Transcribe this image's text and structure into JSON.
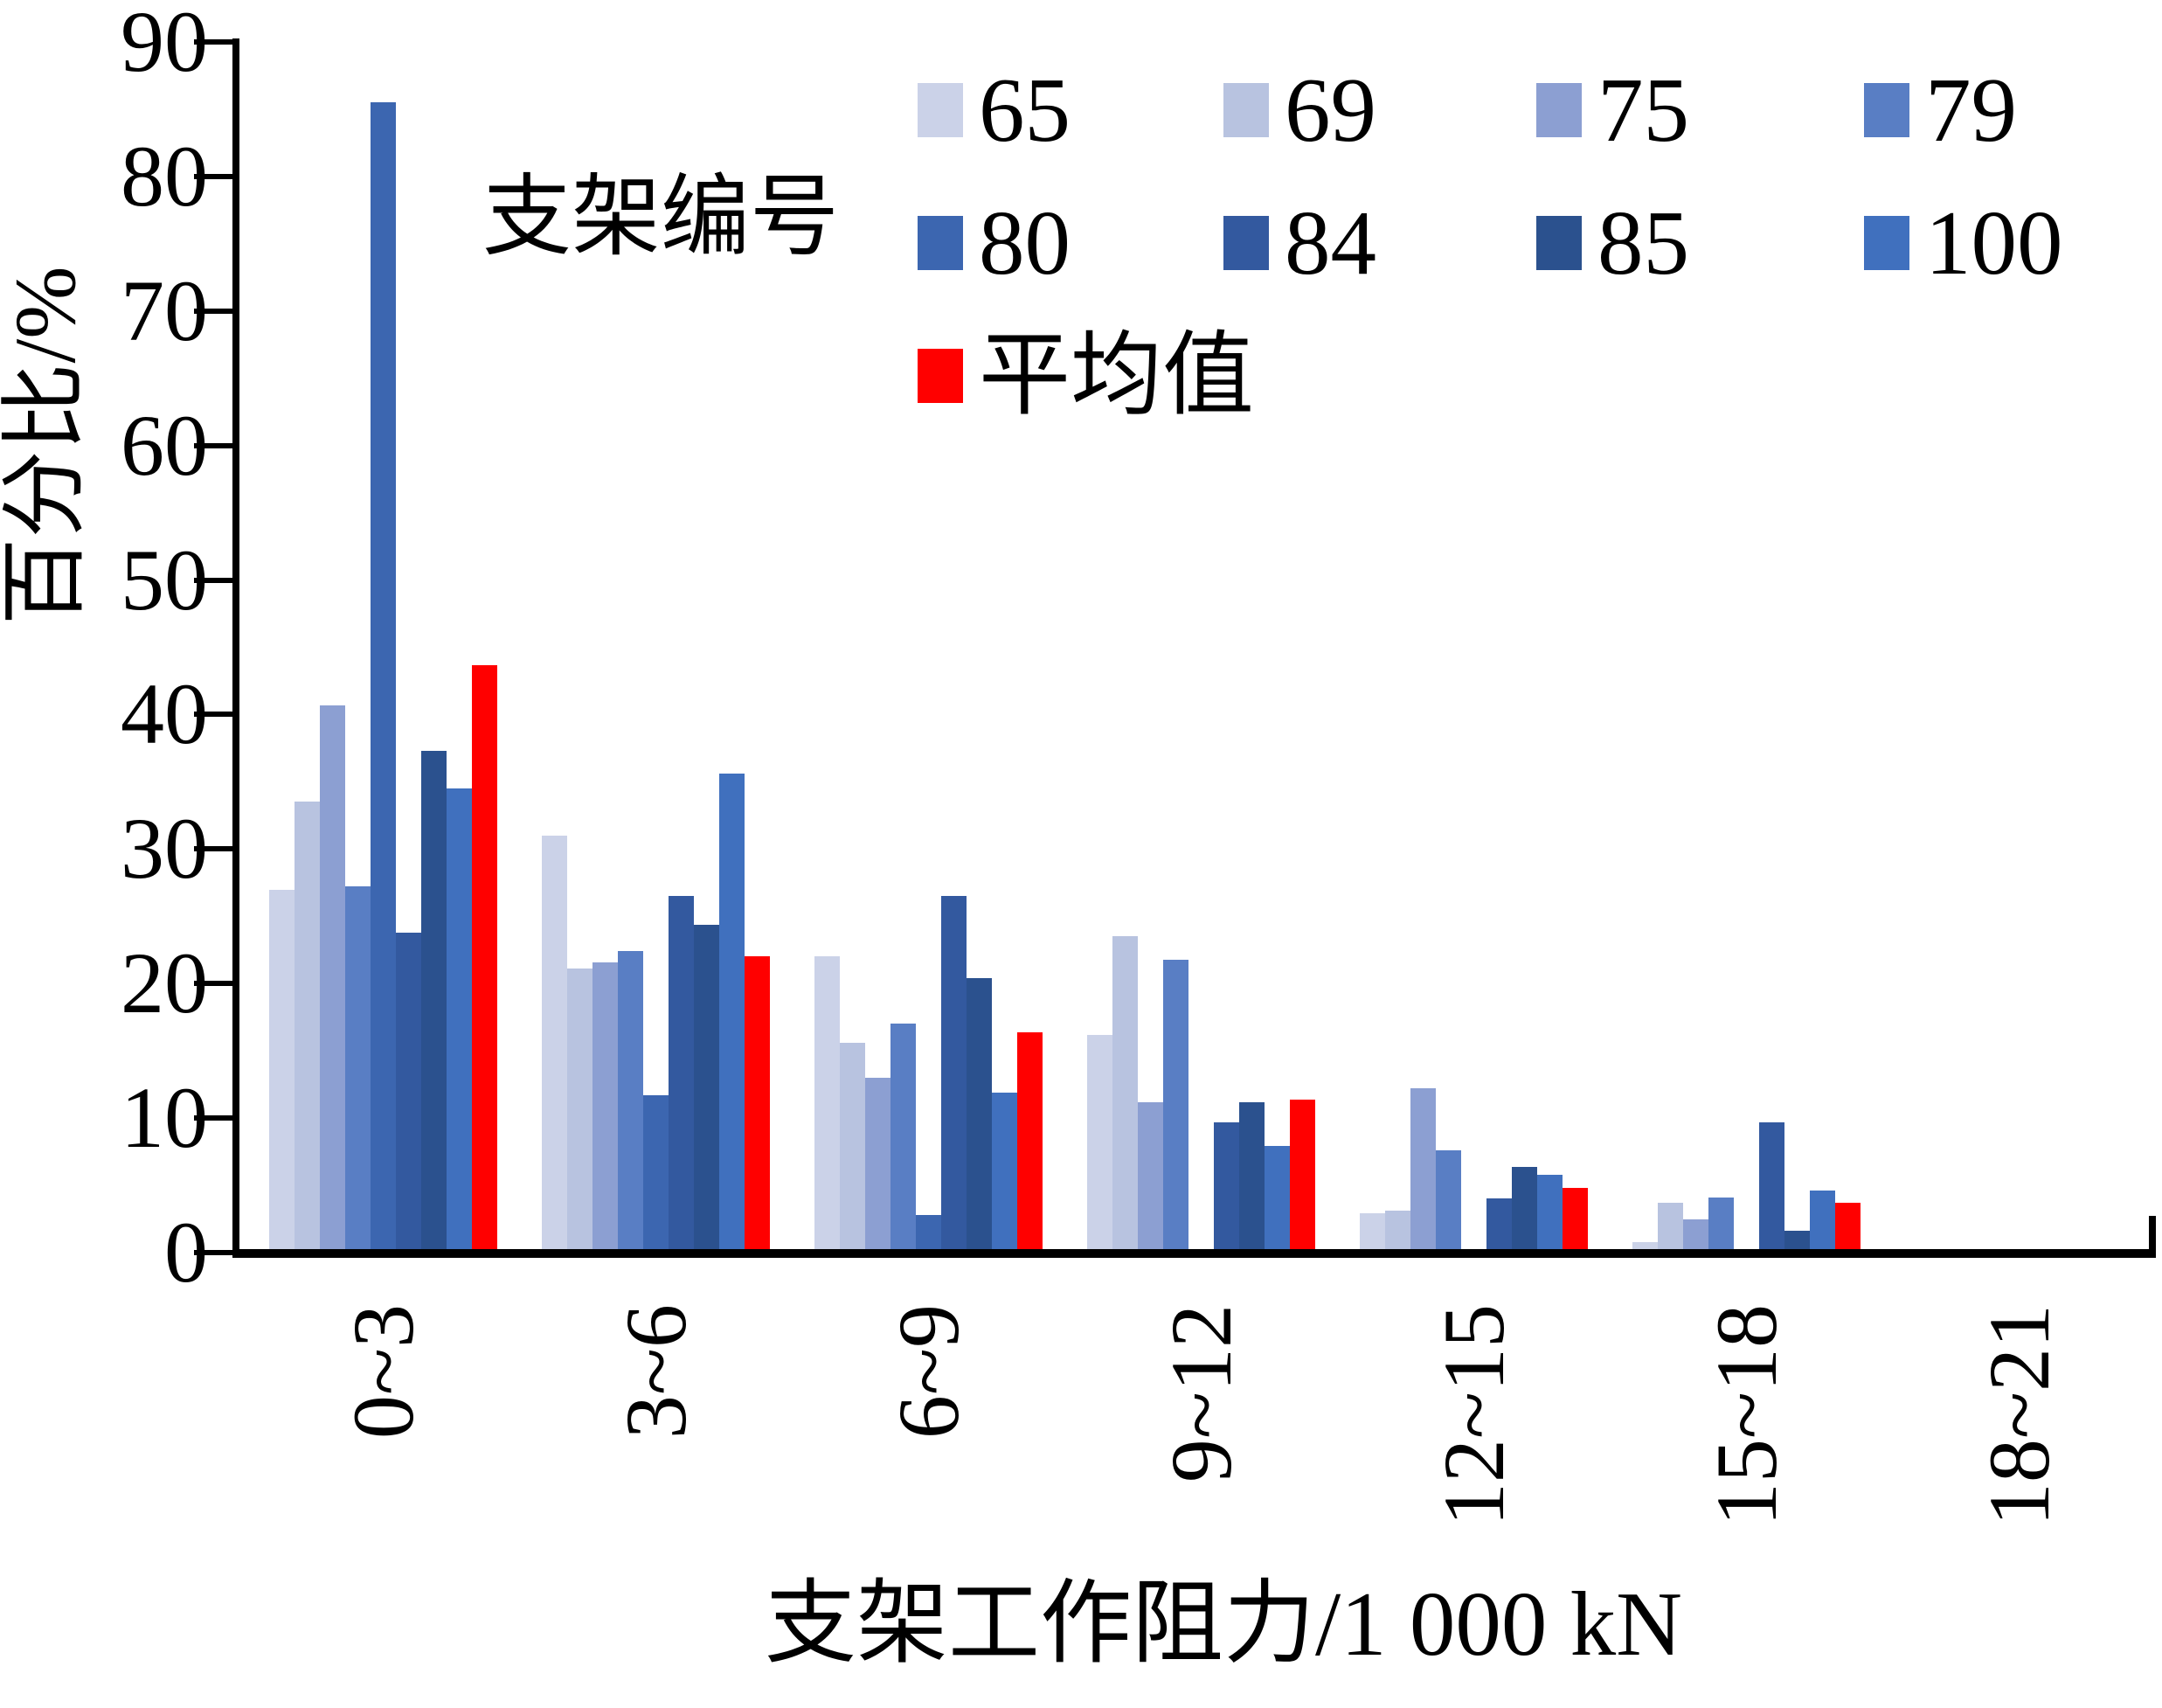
{
  "figure": {
    "legend_title": "支架编号",
    "y_axis_title": "百分比/%",
    "x_axis_title": "支架工作阻力/1 000 kN"
  },
  "chart_data": {
    "type": "bar",
    "title": "",
    "xlabel": "支架工作阻力/1 000 kN",
    "ylabel": "百分比/%",
    "ylim": [
      0,
      90
    ],
    "yticks": [
      0,
      10,
      20,
      30,
      40,
      50,
      60,
      70,
      80,
      90
    ],
    "grid": false,
    "legend_position": "top-right, grid 4x2 plus average row",
    "categories": [
      "0~3",
      "3~6",
      "6~9",
      "9~12",
      "12~15",
      "15~18",
      "18~21"
    ],
    "series": [
      {
        "name": "65",
        "color": "#CBD2E8",
        "values": [
          27.0,
          31.0,
          22.0,
          16.2,
          2.9,
          0.8,
          0
        ]
      },
      {
        "name": "69",
        "color": "#B8C3E0",
        "values": [
          33.5,
          21.1,
          15.6,
          23.5,
          3.1,
          3.7,
          0
        ]
      },
      {
        "name": "75",
        "color": "#8C9FD2",
        "values": [
          40.7,
          21.6,
          13.0,
          11.2,
          12.2,
          2.5,
          0
        ]
      },
      {
        "name": "79",
        "color": "#597EC4",
        "values": [
          27.2,
          22.4,
          17.0,
          21.8,
          7.6,
          4.1,
          0
        ]
      },
      {
        "name": "80",
        "color": "#3C66B0",
        "values": [
          85.5,
          11.7,
          2.8,
          0,
          0,
          0,
          0
        ]
      },
      {
        "name": "84",
        "color": "#33599F",
        "values": [
          23.8,
          26.5,
          26.5,
          9.7,
          4.0,
          9.7,
          0
        ]
      },
      {
        "name": "85",
        "color": "#2B518E",
        "values": [
          37.3,
          24.4,
          20.4,
          11.2,
          6.4,
          1.6,
          0
        ]
      },
      {
        "name": "100",
        "color": "#4070BE",
        "values": [
          34.5,
          35.6,
          11.9,
          7.9,
          5.8,
          4.6,
          0
        ]
      },
      {
        "name": "平均值",
        "color": "#FF0000",
        "values": [
          43.7,
          22.0,
          16.4,
          11.4,
          4.8,
          3.7,
          0
        ]
      }
    ]
  }
}
